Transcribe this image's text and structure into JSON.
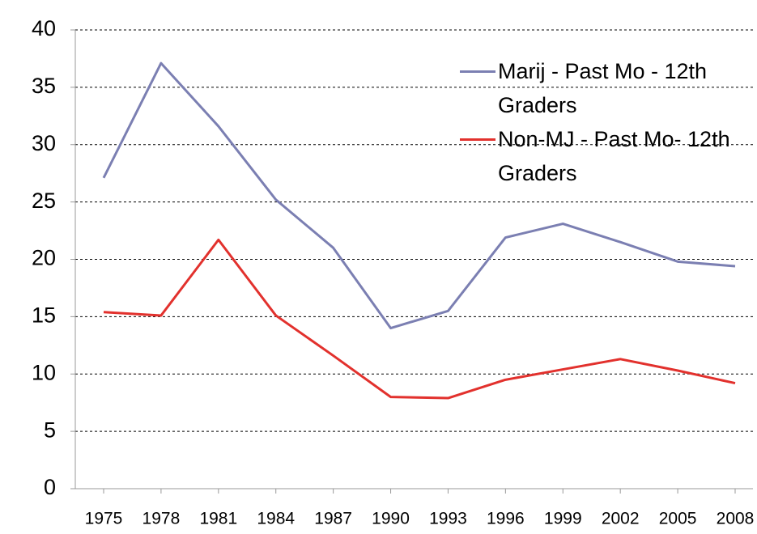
{
  "chart_data": {
    "type": "line",
    "categories": [
      "1975",
      "1978",
      "1981",
      "1984",
      "1987",
      "1990",
      "1993",
      "1996",
      "1999",
      "2002",
      "2005",
      "2008"
    ],
    "series": [
      {
        "name": "Marij - Past Mo - 12th Graders",
        "color": "#7b7fb2",
        "values": [
          27.1,
          37.1,
          31.6,
          25.2,
          21.0,
          14.0,
          15.5,
          21.9,
          23.1,
          21.5,
          19.8,
          19.4
        ]
      },
      {
        "name": "Non-MJ - Past Mo- 12th Graders",
        "color": "#e2312d",
        "values": [
          15.4,
          15.1,
          21.7,
          15.1,
          11.6,
          8.0,
          7.9,
          9.5,
          10.4,
          11.3,
          10.3,
          9.2
        ]
      }
    ],
    "ylim": [
      0,
      40
    ],
    "yticks": [
      0,
      5,
      10,
      15,
      20,
      25,
      30,
      35,
      40
    ],
    "grid": true,
    "legend": "upper right"
  }
}
